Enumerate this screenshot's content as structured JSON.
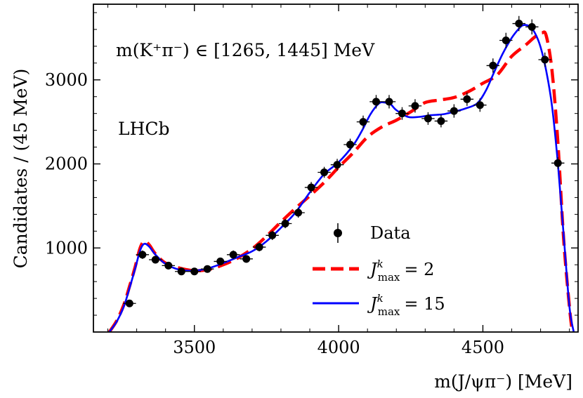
{
  "chart_data": {
    "type": "scatter",
    "xlabel": "m(J/ψπ⁻) [MeV]",
    "ylabel": "Candidates / (45 MeV)",
    "xlim": [
      3150,
      4830
    ],
    "ylim": [
      0,
      3900
    ],
    "xticks": [
      3500,
      4000,
      4500
    ],
    "xtick_labels": [
      "3500",
      "4000",
      "4500"
    ],
    "yticks": [
      1000,
      2000,
      3000
    ],
    "ytick_labels": [
      "1000",
      "2000",
      "3000"
    ],
    "annotations": {
      "mass_window": "m(K⁺π⁻) ∈ [1265, 1445] MeV",
      "experiment": "LHCb"
    },
    "series": [
      {
        "name": "Data",
        "kind": "points",
        "color": "#000000",
        "x": [
          3275,
          3320,
          3365,
          3410,
          3455,
          3500,
          3545,
          3590,
          3635,
          3680,
          3725,
          3770,
          3815,
          3860,
          3905,
          3950,
          3995,
          4040,
          4085,
          4130,
          4175,
          4220,
          4265,
          4310,
          4355,
          4400,
          4445,
          4490,
          4535,
          4580,
          4625,
          4670,
          4715,
          4760
        ],
        "y": [
          340,
          920,
          860,
          790,
          720,
          720,
          750,
          840,
          920,
          870,
          1010,
          1150,
          1290,
          1420,
          1720,
          1900,
          1990,
          2230,
          2500,
          2740,
          2740,
          2600,
          2690,
          2540,
          2510,
          2630,
          2770,
          2700,
          3170,
          3470,
          3670,
          3630,
          3240,
          2010
        ],
        "yerr": [
          30,
          50,
          45,
          45,
          40,
          40,
          40,
          45,
          50,
          45,
          50,
          55,
          55,
          60,
          65,
          65,
          70,
          70,
          75,
          80,
          80,
          75,
          80,
          75,
          75,
          80,
          80,
          80,
          85,
          90,
          90,
          90,
          85,
          70
        ]
      },
      {
        "name": "J^k_max = 2",
        "label_main": "J",
        "label_sup": "k",
        "label_sub": "max",
        "label_eq": "= 2",
        "kind": "line",
        "style": "dashed",
        "color": "#ff0000",
        "x": [
          3205,
          3230,
          3255,
          3275,
          3295,
          3310,
          3320,
          3330,
          3345,
          3365,
          3400,
          3450,
          3500,
          3550,
          3600,
          3650,
          3700,
          3750,
          3800,
          3850,
          3900,
          3950,
          4000,
          4050,
          4100,
          4150,
          4200,
          4250,
          4300,
          4350,
          4400,
          4450,
          4500,
          4550,
          4600,
          4650,
          4680,
          4705,
          4720,
          4740,
          4760,
          4780,
          4800,
          4810
        ],
        "y": [
          0,
          130,
          320,
          540,
          780,
          980,
          1060,
          1080,
          1030,
          930,
          820,
          760,
          730,
          745,
          800,
          880,
          990,
          1140,
          1310,
          1470,
          1620,
          1780,
          1960,
          2130,
          2320,
          2440,
          2520,
          2620,
          2730,
          2760,
          2790,
          2860,
          2960,
          3060,
          3280,
          3420,
          3510,
          3560,
          3520,
          3100,
          2250,
          1100,
          300,
          0
        ]
      },
      {
        "name": "J^k_max = 15",
        "label_main": "J",
        "label_sup": "k",
        "label_sub": "max",
        "label_eq": "= 15",
        "kind": "line",
        "style": "solid",
        "color": "#0000ff",
        "x": [
          3205,
          3230,
          3255,
          3275,
          3295,
          3310,
          3320,
          3330,
          3345,
          3365,
          3400,
          3450,
          3500,
          3550,
          3600,
          3650,
          3700,
          3750,
          3800,
          3850,
          3900,
          3950,
          4000,
          4050,
          4080,
          4110,
          4140,
          4160,
          4180,
          4200,
          4240,
          4280,
          4320,
          4360,
          4400,
          4440,
          4480,
          4510,
          4540,
          4570,
          4600,
          4625,
          4640,
          4660,
          4680,
          4700,
          4720,
          4740,
          4760,
          4780,
          4800,
          4815
        ],
        "y": [
          0,
          120,
          300,
          520,
          760,
          950,
          1030,
          1050,
          1010,
          920,
          810,
          740,
          730,
          760,
          820,
          890,
          960,
          1080,
          1240,
          1420,
          1660,
          1880,
          2020,
          2220,
          2390,
          2590,
          2720,
          2730,
          2710,
          2640,
          2560,
          2560,
          2580,
          2590,
          2620,
          2660,
          2720,
          2870,
          3100,
          3320,
          3500,
          3610,
          3650,
          3640,
          3560,
          3390,
          3100,
          2680,
          2000,
          1150,
          300,
          0
        ]
      }
    ]
  }
}
